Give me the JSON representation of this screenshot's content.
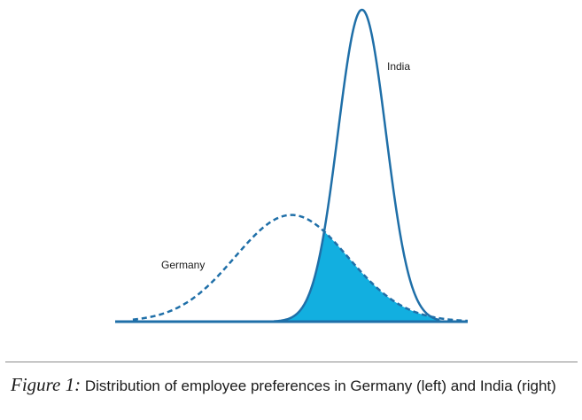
{
  "chart_data": {
    "type": "area",
    "title": "",
    "xlabel": "",
    "ylabel": "",
    "grid": false,
    "legend": "none",
    "xlim": [
      0,
      100
    ],
    "ylim": [
      0,
      1
    ],
    "series": [
      {
        "name": "Germany",
        "line": "dashed",
        "color": "#1f6fa8",
        "mean": 50,
        "sd": 16,
        "peak": 0.342
      },
      {
        "name": "India",
        "line": "solid",
        "color": "#1f6fa8",
        "mean": 70,
        "sd": 6.8,
        "peak": 1.0
      }
    ],
    "overlap_fill_color": "#12afe0"
  },
  "caption": {
    "label": "Figure 1:",
    "text": " Distribution of employee preferences in Germany (left) and India (right)"
  }
}
